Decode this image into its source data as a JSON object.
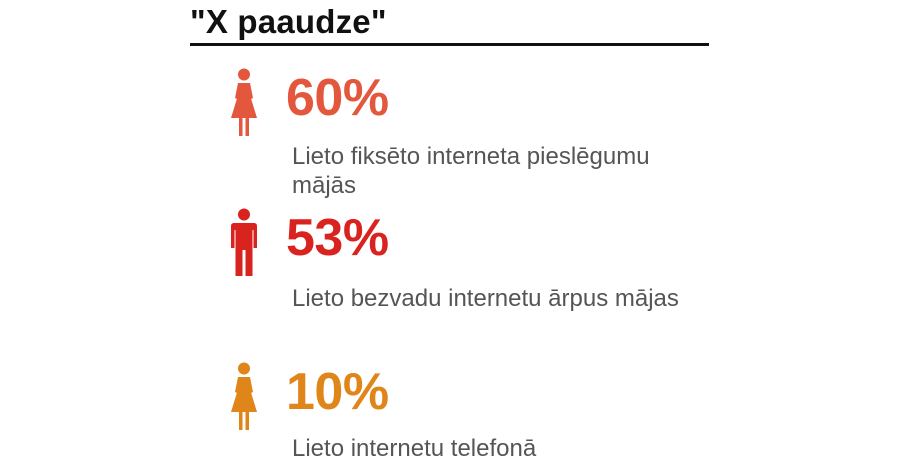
{
  "title": "\"X paaudze\"",
  "colors": {
    "stat1": "#e3573d",
    "stat2": "#d8231f",
    "stat3": "#e0851a",
    "text": "#555555",
    "title": "#111111"
  },
  "stats": [
    {
      "icon": "female-person-icon",
      "percent": "60%",
      "value_percent": 60,
      "description": "Lieto fiksēto interneta pieslēgumu mājās"
    },
    {
      "icon": "male-person-icon",
      "percent": "53%",
      "value_percent": 53,
      "description": "Lieto bezvadu internetu ārpus mājas"
    },
    {
      "icon": "female-person-icon",
      "percent": "10%",
      "value_percent": 10,
      "description": "Lieto internetu telefonā"
    }
  ]
}
